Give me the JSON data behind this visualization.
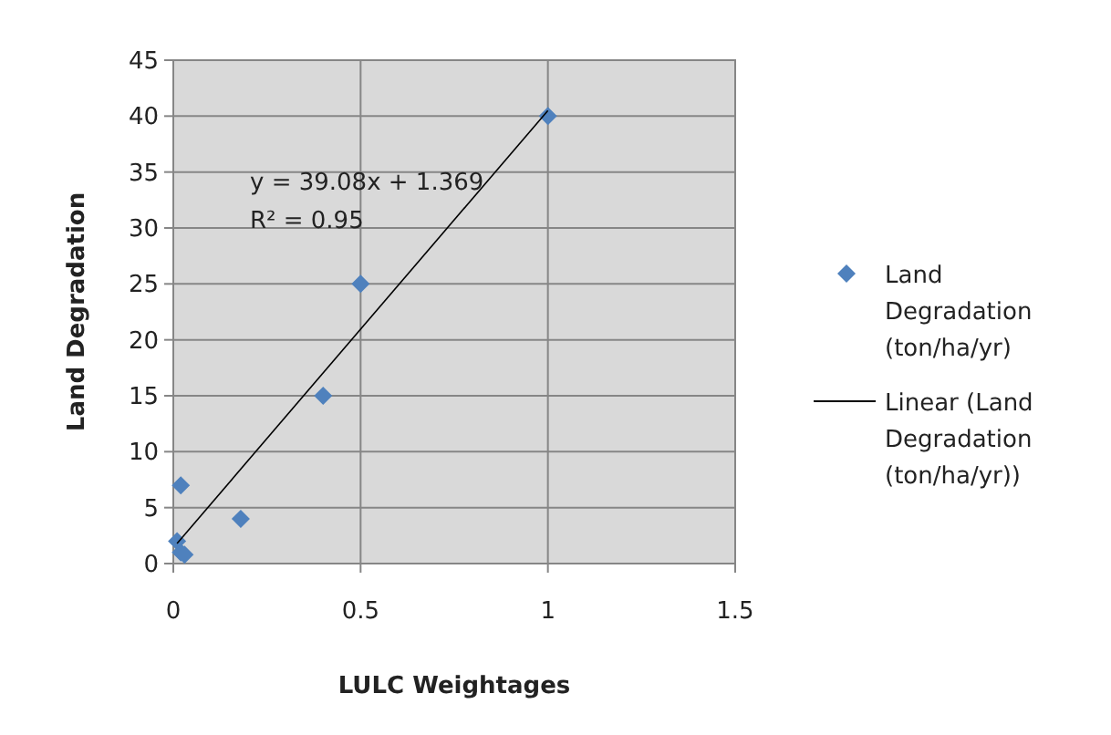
{
  "chart_data": {
    "type": "scatter",
    "xlabel": "LULC Weightages",
    "ylabel": "Land Degradation",
    "xlim": [
      0,
      1.5
    ],
    "xticks": [
      0,
      0.5,
      1,
      1.5
    ],
    "ylim": [
      0,
      45
    ],
    "yticks": [
      0,
      5,
      10,
      15,
      20,
      25,
      30,
      35,
      40,
      45
    ],
    "grid": true,
    "legend": "right",
    "series": [
      {
        "name": "Land Degradation (ton/ha/yr)",
        "marker": "diamond",
        "color": "#4f81bd",
        "x": [
          0.02,
          0.01,
          0.02,
          0.03,
          0.18,
          0.4,
          0.5,
          1
        ],
        "values": [
          7,
          2,
          1,
          0.8,
          4,
          15,
          25,
          40
        ]
      },
      {
        "name": "Linear (Land Degradation (ton/ha/yr))",
        "type": "line",
        "marker": "none",
        "line_style": "solid",
        "color": "#000000",
        "x": [
          0.01,
          1
        ],
        "values": [
          1.8,
          40.5
        ]
      }
    ],
    "annotations": [
      "y = 39.08x + 1.369",
      "R² = 0.95"
    ]
  }
}
